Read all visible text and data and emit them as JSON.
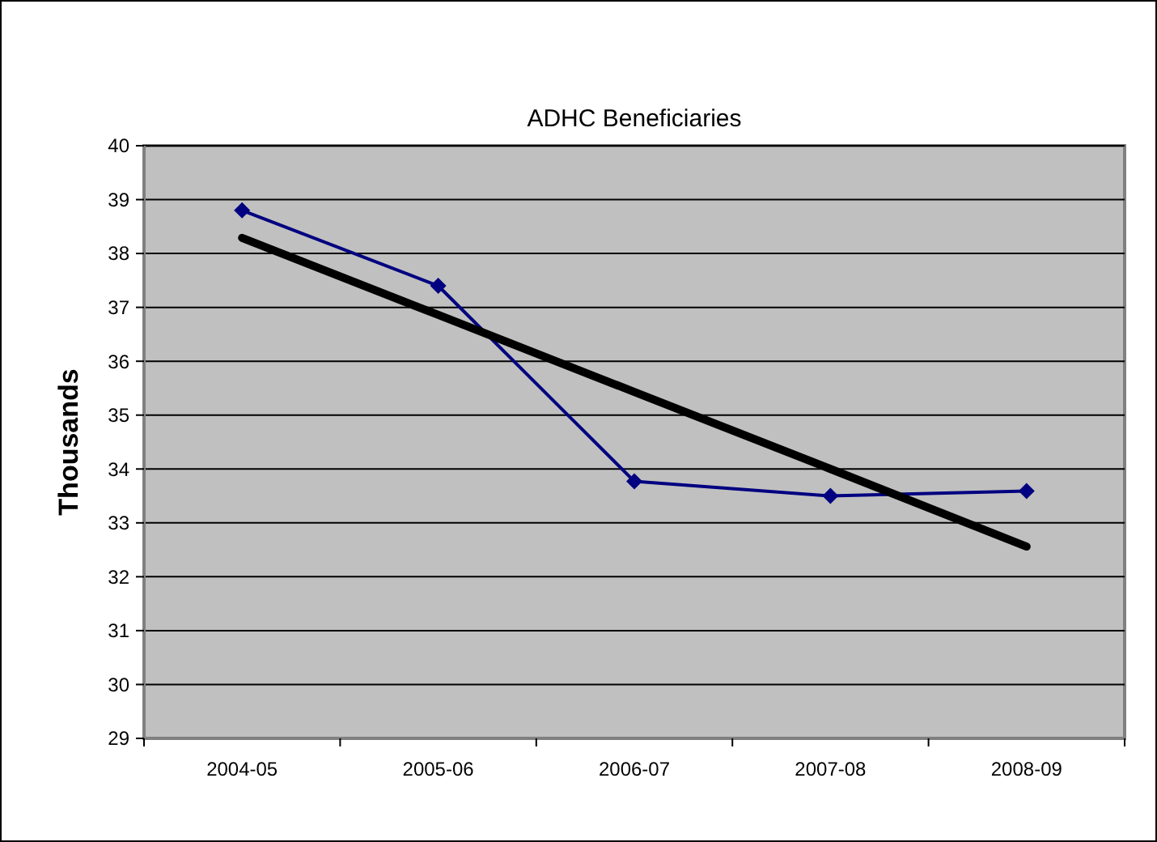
{
  "chart_data": {
    "type": "line",
    "title": "ADHC Beneficiaries",
    "ylabel": "Thousands",
    "categories": [
      "2004-05",
      "2005-06",
      "2006-07",
      "2007-08",
      "2008-09"
    ],
    "series": [
      {
        "color": "#000080",
        "values": [
          38.8,
          37.4,
          33.77,
          33.5,
          33.59
        ],
        "marker": "diamond"
      },
      {
        "type": "line",
        "color": "#000000",
        "values": [
          38.29,
          36.86,
          35.43,
          34.0,
          32.56
        ],
        "marker": "none"
      }
    ],
    "ylim": [
      29,
      40
    ],
    "yticks": [
      29,
      30,
      31,
      32,
      33,
      34,
      35,
      36,
      37,
      38,
      39,
      40
    ],
    "grid": "y",
    "line_style": "solid"
  }
}
